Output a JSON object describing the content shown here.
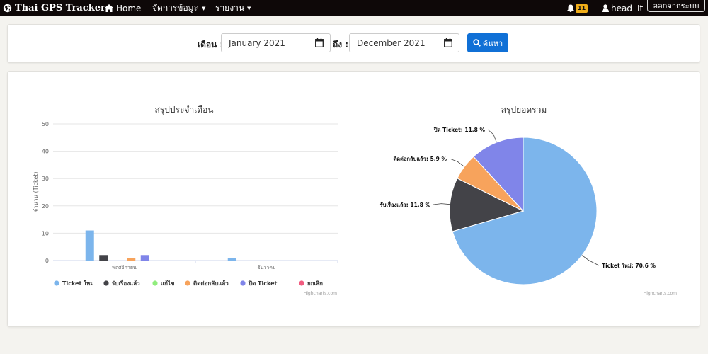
{
  "navbar": {
    "brand": "Thai GPS Tracker",
    "home": "Home",
    "menu_data": "จัดการข้อมูล",
    "menu_report": "รายงาน",
    "notification_count": "11",
    "user_name": "head",
    "user_extra": "It",
    "logout": "ออกจากระบบ"
  },
  "search_form": {
    "from_label": "เดือน :",
    "from_value": "January 2021",
    "to_label": "ถึง :",
    "to_value": "December 2021",
    "search_button": "ค้นหา"
  },
  "chart_data": [
    {
      "type": "bar",
      "title": "สรุปประจำเดือน",
      "ylabel": "จำนวน (Ticket)",
      "ylim": [
        0,
        50
      ],
      "yticks": [
        0,
        10,
        20,
        30,
        40,
        50
      ],
      "categories": [
        "พฤศจิกายน",
        "ธันวาคม"
      ],
      "series": [
        {
          "name": "Ticket ใหม่",
          "color": "#7cb5ec",
          "values": [
            11,
            1
          ]
        },
        {
          "name": "รับเรื่องแล้ว",
          "color": "#434348",
          "values": [
            2,
            0
          ]
        },
        {
          "name": "แก้ไข",
          "color": "#90ed7d",
          "values": [
            0,
            0
          ]
        },
        {
          "name": "ติดต่อกลับแล้ว",
          "color": "#f7a35c",
          "values": [
            1,
            0
          ]
        },
        {
          "name": "ปิด Ticket",
          "color": "#8085e9",
          "values": [
            2,
            0
          ]
        },
        {
          "name": "ยกเลิก",
          "color": "#f15c80",
          "values": [
            0,
            0
          ]
        }
      ],
      "legend_position": "bottom",
      "credits": "Highcharts.com"
    },
    {
      "type": "pie",
      "title": "สรุปยอดรวม",
      "slices": [
        {
          "name": "Ticket ใหม่",
          "value": 70.6,
          "color": "#7cb5ec",
          "label": "Ticket ใหม่: 70.6 %"
        },
        {
          "name": "รับเรื่องแล้ว",
          "value": 11.8,
          "color": "#434348",
          "label": "รับเรื่องแล้ว: 11.8 %"
        },
        {
          "name": "ติดต่อกลับแล้ว",
          "value": 5.9,
          "color": "#f7a35c",
          "label": "ติดต่อกลับแล้ว: 5.9 %"
        },
        {
          "name": "ปิด Ticket",
          "value": 11.8,
          "color": "#8085e9",
          "label": "ปิด Ticket: 11.8 %"
        }
      ],
      "credits": "Highcharts.com"
    }
  ]
}
